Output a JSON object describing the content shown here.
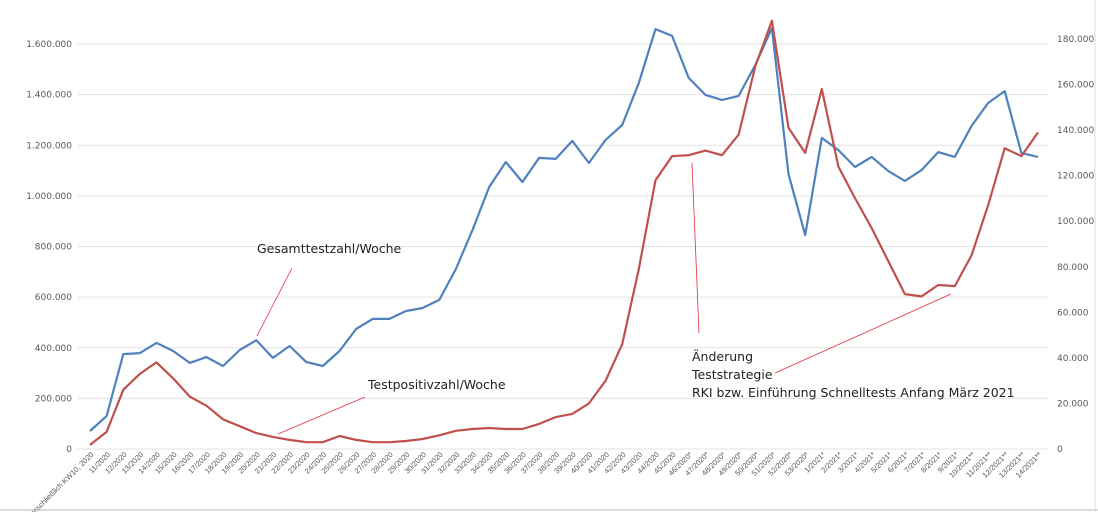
{
  "chart_data": {
    "type": "line",
    "title": "",
    "xlabel": "",
    "ylabel": "",
    "grid": true,
    "categories": [
      "bis einschließlich KW10, 2020",
      "11/2020",
      "12/2020",
      "13/2020",
      "14/2020",
      "15/2020",
      "16/2020",
      "17/2020",
      "18/2020",
      "19/2020",
      "20/2020",
      "21/2020",
      "22/2020",
      "23/2020",
      "24/2020",
      "25/2020",
      "26/2020",
      "27/2020",
      "28/2020",
      "29/2020",
      "30/2020",
      "31/2020",
      "32/2020",
      "33/2020",
      "34/2020",
      "35/2020",
      "36/2020",
      "37/2020",
      "38/2020",
      "39/2020",
      "40/2020",
      "41/2020",
      "42/2020",
      "43/2020",
      "44/2020",
      "45/2020",
      "46/2020*",
      "47/2020*",
      "48/2020*",
      "49/2020*",
      "50/2020*",
      "51/2020*",
      "52/2020*",
      "53/2020*",
      "1/2021*",
      "2/2021*",
      "3/2021*",
      "4/2021*",
      "5/2021*",
      "6/2021*",
      "7/2021*",
      "8/2021*",
      "9/2021*",
      "10/2021**",
      "11/2021**",
      "12/2021**",
      "13/2021**",
      "14/2021**"
    ],
    "y_left": {
      "ylim": [
        0,
        1600000
      ],
      "ticks": [
        "0",
        "200.000",
        "400.000",
        "600.000",
        "800.000",
        "1.000.000",
        "1.200.000",
        "1.400.000",
        "1.600.000"
      ]
    },
    "y_right": {
      "ylim": [
        0,
        180000
      ],
      "ticks": [
        "0",
        "20.000",
        "40.000",
        "60.000",
        "80.000",
        "100.000",
        "120.000",
        "140.000",
        "160.000",
        "180.000"
      ]
    },
    "series": [
      {
        "name": "Gesamttestzahl/Woche",
        "axis": "left",
        "color": "#4f81bd",
        "values": [
          71000,
          130000,
          375000,
          379000,
          419000,
          387000,
          340000,
          363000,
          328000,
          391000,
          430000,
          360000,
          407000,
          344000,
          328000,
          387000,
          474000,
          514000,
          514000,
          545000,
          557000,
          589000,
          711000,
          865000,
          1035000,
          1134000,
          1055000,
          1150000,
          1146000,
          1217000,
          1130000,
          1221000,
          1280000,
          1446000,
          1659000,
          1632000,
          1466000,
          1399000,
          1379000,
          1395000,
          1517000,
          1663000,
          1086000,
          845000,
          1229000,
          1181000,
          1114000,
          1154000,
          1098000,
          1059000,
          1102000,
          1173000,
          1154000,
          1276000,
          1367000,
          1414000,
          1169000,
          1154000
        ]
      },
      {
        "name": "Testpositivzahl/Woche",
        "axis": "right",
        "color": "#c0504d",
        "values": [
          1800,
          7500,
          26000,
          33000,
          38000,
          31000,
          23000,
          19000,
          13000,
          10000,
          7000,
          5300,
          4000,
          3000,
          3000,
          5700,
          4000,
          3000,
          3000,
          3500,
          4400,
          6000,
          8000,
          8800,
          9200,
          8800,
          8800,
          11000,
          14000,
          15400,
          20000,
          30000,
          46000,
          79000,
          118000,
          128600,
          129000,
          131000,
          129000,
          138000,
          168000,
          188000,
          141000,
          130000,
          158000,
          124000,
          110000,
          97000,
          82500,
          68000,
          67000,
          72000,
          71500,
          85000,
          107000,
          132000,
          128600,
          139000
        ]
      }
    ],
    "annotations": {
      "total": "Gesamttestzahl/Woche",
      "positive": "Testpositivzahl/Woche",
      "change_line1": "Änderung",
      "change_line2": "Teststrategie",
      "change_line3": "RKI bzw. Einführung Schnelltests Anfang März 2021"
    },
    "legend": "none"
  }
}
